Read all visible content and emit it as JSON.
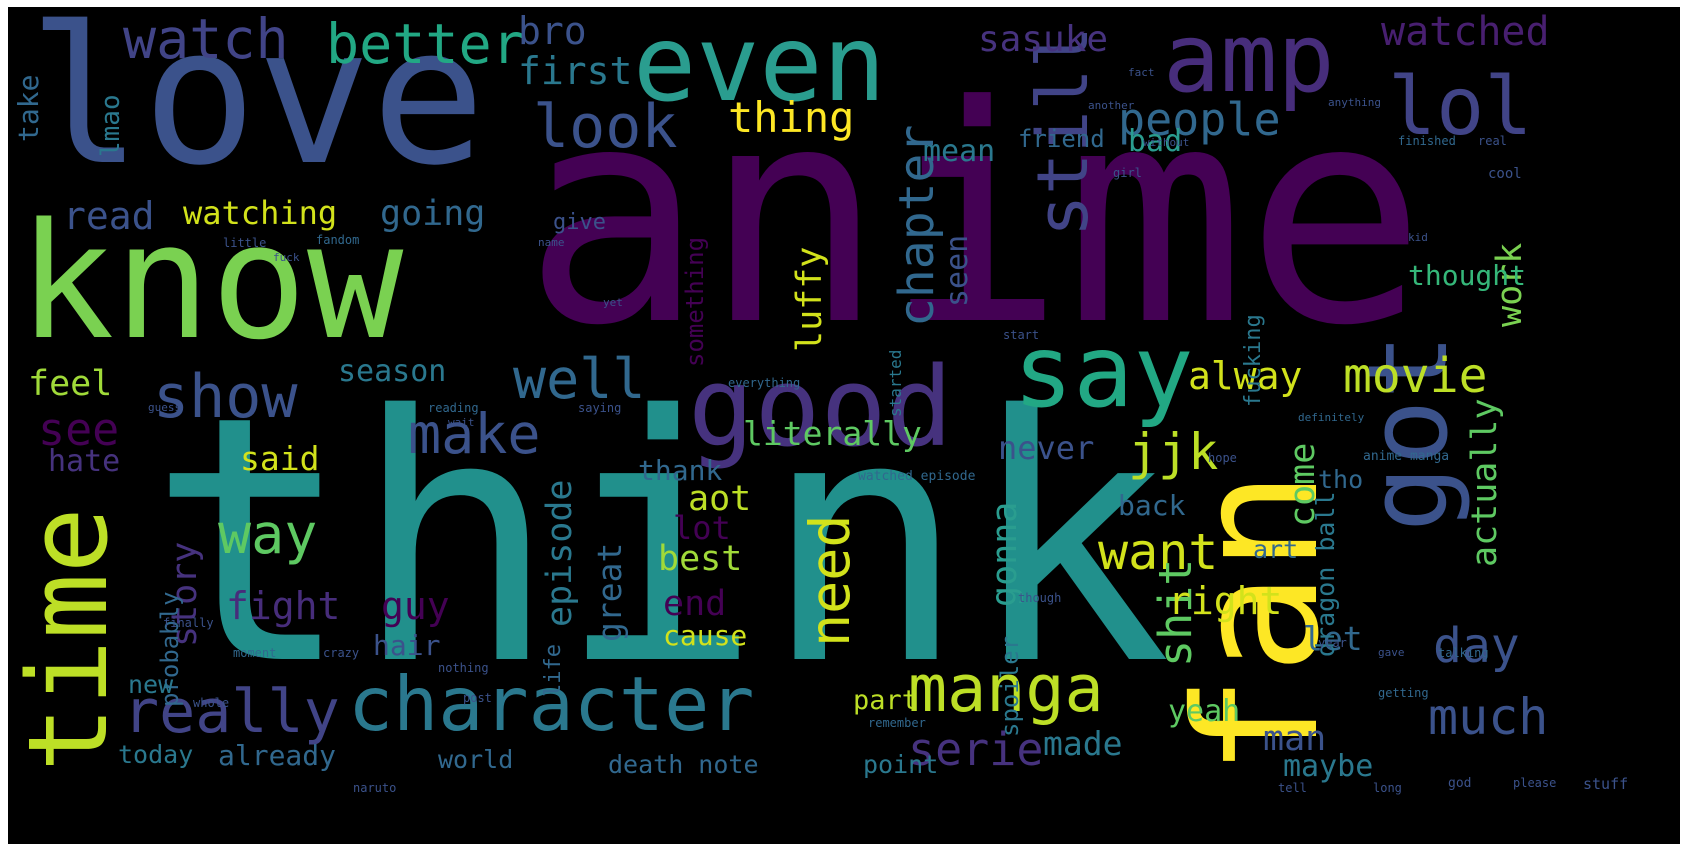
{
  "wordcloud": {
    "background": "#000000",
    "words": [
      {
        "text": "anime",
        "color": "#440154"
      },
      {
        "text": "think",
        "color": "#21908c"
      },
      {
        "text": "love",
        "color": "#3b528b"
      },
      {
        "text": "know",
        "color": "#7ad151"
      },
      {
        "text": "fan",
        "color": "#fde725"
      },
      {
        "text": "even",
        "color": "#2a9d8f"
      },
      {
        "text": "amp",
        "color": "#472d7b"
      },
      {
        "text": "good",
        "color": "#46327e"
      },
      {
        "text": "say",
        "color": "#22a884"
      },
      {
        "text": "got",
        "color": "#3b528b"
      },
      {
        "text": "time",
        "color": "#bddf26"
      },
      {
        "text": "still",
        "color": "#414487"
      },
      {
        "text": "lol",
        "color": "#414487"
      },
      {
        "text": "manga",
        "color": "#bddf26"
      },
      {
        "text": "character",
        "color": "#2a788e"
      },
      {
        "text": "really",
        "color": "#414487"
      },
      {
        "text": "watch",
        "color": "#414487"
      },
      {
        "text": "better",
        "color": "#22a884"
      },
      {
        "text": "bro",
        "color": "#3b528b"
      },
      {
        "text": "first",
        "color": "#2a788e"
      },
      {
        "text": "sasuke",
        "color": "#46327e"
      },
      {
        "text": "watched",
        "color": "#481f70"
      },
      {
        "text": "look",
        "color": "#3b528b"
      },
      {
        "text": "thing",
        "color": "#fde725"
      },
      {
        "text": "mean",
        "color": "#2a788e"
      },
      {
        "text": "people",
        "color": "#31688e"
      },
      {
        "text": "bad",
        "color": "#2a9d8f"
      },
      {
        "text": "friend",
        "color": "#31688e"
      },
      {
        "text": "chapter",
        "color": "#31688e"
      },
      {
        "text": "seen",
        "color": "#3b528b"
      },
      {
        "text": "work",
        "color": "#7ad151"
      },
      {
        "text": "thought",
        "color": "#35b779"
      },
      {
        "text": "watching",
        "color": "#d2e21b"
      },
      {
        "text": "going",
        "color": "#31688e"
      },
      {
        "text": "read",
        "color": "#3b528b"
      },
      {
        "text": "lmao",
        "color": "#2a788e"
      },
      {
        "text": "take",
        "color": "#31688e"
      },
      {
        "text": "something",
        "color": "#440154"
      },
      {
        "text": "luffy",
        "color": "#d2e21b"
      },
      {
        "text": "give",
        "color": "#3b528b"
      },
      {
        "text": "show",
        "color": "#3b528b"
      },
      {
        "text": "well",
        "color": "#31688e"
      },
      {
        "text": "season",
        "color": "#2a788e"
      },
      {
        "text": "make",
        "color": "#3b528b"
      },
      {
        "text": "literally",
        "color": "#5ec962"
      },
      {
        "text": "movie",
        "color": "#bddf26"
      },
      {
        "text": "alway",
        "color": "#d2e21b"
      },
      {
        "text": "never",
        "color": "#3b528b"
      },
      {
        "text": "feel",
        "color": "#a0da39"
      },
      {
        "text": "see",
        "color": "#440154"
      },
      {
        "text": "hate",
        "color": "#46327e"
      },
      {
        "text": "said",
        "color": "#d2e21b"
      },
      {
        "text": "jjk",
        "color": "#bddf26"
      },
      {
        "text": "actually",
        "color": "#5ec962"
      },
      {
        "text": "way",
        "color": "#5ec962"
      },
      {
        "text": "episode",
        "color": "#2a788e"
      },
      {
        "text": "thank",
        "color": "#31688e"
      },
      {
        "text": "aot",
        "color": "#bddf26"
      },
      {
        "text": "lot",
        "color": "#440154"
      },
      {
        "text": "best",
        "color": "#a0da39"
      },
      {
        "text": "need",
        "color": "#d2e21b"
      },
      {
        "text": "gonna",
        "color": "#2a9d8f"
      },
      {
        "text": "want",
        "color": "#d2e21b"
      },
      {
        "text": "shit",
        "color": "#5ec962"
      },
      {
        "text": "come",
        "color": "#5ec962"
      },
      {
        "text": "tho",
        "color": "#31688e"
      },
      {
        "text": "back",
        "color": "#31688e"
      },
      {
        "text": "day",
        "color": "#3b528b"
      },
      {
        "text": "right",
        "color": "#d2e21b"
      },
      {
        "text": "fight",
        "color": "#472d7b"
      },
      {
        "text": "guy",
        "color": "#440154"
      },
      {
        "text": "story",
        "color": "#46327e"
      },
      {
        "text": "great",
        "color": "#31688e"
      },
      {
        "text": "end",
        "color": "#440154"
      },
      {
        "text": "cause",
        "color": "#d2e21b"
      },
      {
        "text": "let",
        "color": "#31688e"
      },
      {
        "text": "art",
        "color": "#31688e"
      },
      {
        "text": "dragon ball",
        "color": "#2a788e"
      },
      {
        "text": "probably",
        "color": "#31688e"
      },
      {
        "text": "life",
        "color": "#31688e"
      },
      {
        "text": "spoiler",
        "color": "#2a788e"
      },
      {
        "text": "hair",
        "color": "#3b528b"
      },
      {
        "text": "new",
        "color": "#2a788e"
      },
      {
        "text": "part",
        "color": "#bddf26"
      },
      {
        "text": "yeah",
        "color": "#5ec962"
      },
      {
        "text": "man",
        "color": "#3b528b"
      },
      {
        "text": "maybe",
        "color": "#2a788e"
      },
      {
        "text": "much",
        "color": "#3b528b"
      },
      {
        "text": "serie",
        "color": "#46327e"
      },
      {
        "text": "made",
        "color": "#2a788e"
      },
      {
        "text": "today",
        "color": "#2a788e"
      },
      {
        "text": "already",
        "color": "#31688e"
      },
      {
        "text": "world",
        "color": "#31688e"
      },
      {
        "text": "death note",
        "color": "#31688e"
      },
      {
        "text": "point",
        "color": "#2a788e"
      },
      {
        "text": "fucking",
        "color": "#2a788e"
      },
      {
        "text": "started",
        "color": "#2a788e"
      },
      {
        "text": "anime manga",
        "color": "#31688e"
      },
      {
        "text": "watched episode",
        "color": "#31688e"
      },
      {
        "text": "everything",
        "color": "#31688e"
      },
      {
        "text": "reading",
        "color": "#31688e"
      },
      {
        "text": "saying",
        "color": "#3b528b"
      },
      {
        "text": "little",
        "color": "#3b528b"
      },
      {
        "text": "fandom",
        "color": "#31688e"
      },
      {
        "text": "another",
        "color": "#3b528b"
      },
      {
        "text": "without",
        "color": "#3b528b"
      },
      {
        "text": "anything",
        "color": "#3b528b"
      },
      {
        "text": "finished",
        "color": "#31688e"
      },
      {
        "text": "real",
        "color": "#3b528b"
      },
      {
        "text": "cool",
        "color": "#3b528b"
      },
      {
        "text": "girl",
        "color": "#3b528b"
      },
      {
        "text": "start",
        "color": "#3b528b"
      },
      {
        "text": "definitely",
        "color": "#31688e"
      },
      {
        "text": "hope",
        "color": "#3b528b"
      },
      {
        "text": "though",
        "color": "#3b528b"
      },
      {
        "text": "moment",
        "color": "#31688e"
      },
      {
        "text": "nothing",
        "color": "#3b528b"
      },
      {
        "text": "crazy",
        "color": "#3b528b"
      },
      {
        "text": "whole",
        "color": "#3b528b"
      },
      {
        "text": "post",
        "color": "#3b528b"
      },
      {
        "text": "remember",
        "color": "#31688e"
      },
      {
        "text": "year",
        "color": "#3b528b"
      },
      {
        "text": "gave",
        "color": "#3b528b"
      },
      {
        "text": "getting",
        "color": "#31688e"
      },
      {
        "text": "talking",
        "color": "#31688e"
      },
      {
        "text": "stuff",
        "color": "#3b528b"
      },
      {
        "text": "please",
        "color": "#3b528b"
      },
      {
        "text": "god",
        "color": "#3b528b"
      },
      {
        "text": "long",
        "color": "#3b528b"
      },
      {
        "text": "tell",
        "color": "#3b528b"
      },
      {
        "text": "naruto",
        "color": "#3b528b"
      },
      {
        "text": "finally",
        "color": "#3b528b"
      },
      {
        "text": "guess",
        "color": "#3b528b"
      },
      {
        "text": "wait",
        "color": "#3b528b"
      },
      {
        "text": "kid",
        "color": "#3b528b"
      },
      {
        "text": "name",
        "color": "#3b528b"
      },
      {
        "text": "fuck",
        "color": "#3b528b"
      },
      {
        "text": "yet",
        "color": "#3b528b"
      },
      {
        "text": "fact",
        "color": "#3b528b"
      }
    ]
  }
}
